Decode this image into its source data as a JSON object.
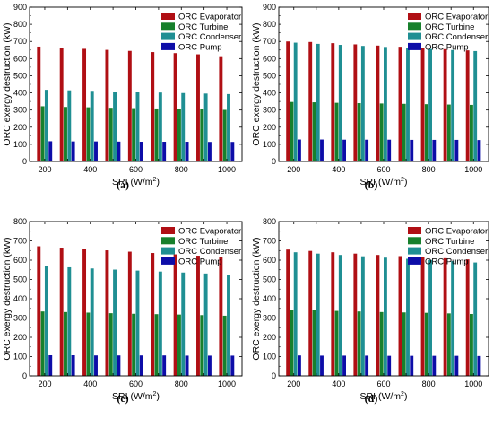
{
  "chart_data": [
    {
      "type": "bar",
      "panel_label": "(a)",
      "categories": [
        "200",
        "300",
        "400",
        "500",
        "600",
        "700",
        "800",
        "900",
        "1000"
      ],
      "xlabel_main": "SRI (W/m",
      "xlabel_sup": "2",
      "xlabel_tail": ")",
      "ylabel": "ORC exergy destruction (kW)",
      "ylim": [
        0,
        900
      ],
      "yticks": [
        0,
        100,
        200,
        300,
        400,
        500,
        600,
        700,
        800,
        900
      ],
      "xticks_shown": [
        "200",
        "400",
        "600",
        "800",
        "1000"
      ],
      "legend_position": "top-right",
      "series": [
        {
          "name": "ORC Evaporator",
          "color": "#b00f14",
          "values": [
            670,
            663,
            657,
            651,
            645,
            638,
            632,
            625,
            614
          ]
        },
        {
          "name": "ORC Turbine",
          "color": "#17802c",
          "values": [
            322,
            318,
            316,
            313,
            311,
            309,
            307,
            304,
            301
          ]
        },
        {
          "name": "ORC Condenser",
          "color": "#1f8f93",
          "values": [
            418,
            415,
            412,
            408,
            405,
            402,
            399,
            396,
            393
          ]
        },
        {
          "name": "ORC Pump",
          "color": "#0d0da8",
          "values": [
            118,
            117,
            117,
            116,
            115,
            115,
            115,
            114,
            114
          ]
        }
      ]
    },
    {
      "type": "bar",
      "panel_label": "(b)",
      "categories": [
        "200",
        "300",
        "400",
        "500",
        "600",
        "700",
        "800",
        "900",
        "1000"
      ],
      "xlabel_main": "SRI (W/m",
      "xlabel_sup": "2",
      "xlabel_tail": ")",
      "ylabel": "ORC exergy destruction (kW)",
      "ylim": [
        0,
        900
      ],
      "yticks": [
        0,
        100,
        200,
        300,
        400,
        500,
        600,
        700,
        800,
        900
      ],
      "xticks_shown": [
        "200",
        "400",
        "600",
        "800",
        "1000"
      ],
      "legend_position": "top-right",
      "series": [
        {
          "name": "ORC Evaporator",
          "color": "#b00f14",
          "values": [
            700,
            697,
            690,
            683,
            676,
            669,
            662,
            655,
            648
          ]
        },
        {
          "name": "ORC Turbine",
          "color": "#17802c",
          "values": [
            347,
            345,
            342,
            340,
            338,
            336,
            334,
            332,
            330
          ]
        },
        {
          "name": "ORC Condenser",
          "color": "#1f8f93",
          "values": [
            693,
            686,
            680,
            674,
            668,
            662,
            656,
            650,
            644
          ]
        },
        {
          "name": "ORC Pump",
          "color": "#0d0da8",
          "values": [
            128,
            128,
            127,
            127,
            127,
            126,
            126,
            126,
            125
          ]
        }
      ]
    },
    {
      "type": "bar",
      "panel_label": "(c)",
      "categories": [
        "200",
        "300",
        "400",
        "500",
        "600",
        "700",
        "800",
        "900",
        "1000"
      ],
      "xlabel_main": "SRI (W/m",
      "xlabel_sup": "2",
      "xlabel_tail": ")",
      "ylabel": "ORC exergy destruction (kW)",
      "ylim": [
        0,
        800
      ],
      "yticks": [
        0,
        100,
        200,
        300,
        400,
        500,
        600,
        700,
        800
      ],
      "xticks_shown": [
        "200",
        "400",
        "600",
        "800",
        "1000"
      ],
      "legend_position": "top-right",
      "series": [
        {
          "name": "ORC Evaporator",
          "color": "#b00f14",
          "values": [
            672,
            665,
            658,
            651,
            644,
            637,
            630,
            623,
            614
          ]
        },
        {
          "name": "ORC Turbine",
          "color": "#17802c",
          "values": [
            334,
            331,
            328,
            325,
            322,
            320,
            318,
            315,
            312
          ]
        },
        {
          "name": "ORC Condenser",
          "color": "#1f8f93",
          "values": [
            569,
            563,
            557,
            551,
            546,
            541,
            536,
            531,
            524
          ]
        },
        {
          "name": "ORC Pump",
          "color": "#0d0da8",
          "values": [
            107,
            107,
            106,
            106,
            106,
            106,
            105,
            105,
            105
          ]
        }
      ]
    },
    {
      "type": "bar",
      "panel_label": "(d)",
      "categories": [
        "200",
        "300",
        "400",
        "500",
        "600",
        "700",
        "800",
        "900",
        "1000"
      ],
      "xlabel_main": "SRI (W/m",
      "xlabel_sup": "2",
      "xlabel_tail": ")",
      "ylabel": "ORC exergy destruction (kW)",
      "ylim": [
        0,
        800
      ],
      "yticks": [
        0,
        100,
        200,
        300,
        400,
        500,
        600,
        700,
        800
      ],
      "xticks_shown": [
        "200",
        "400",
        "600",
        "800",
        "1000"
      ],
      "legend_position": "top-right",
      "series": [
        {
          "name": "ORC Evaporator",
          "color": "#b00f14",
          "values": [
            655,
            648,
            641,
            634,
            627,
            621,
            615,
            610,
            604
          ]
        },
        {
          "name": "ORC Turbine",
          "color": "#17802c",
          "values": [
            343,
            340,
            337,
            334,
            331,
            329,
            327,
            324,
            321
          ]
        },
        {
          "name": "ORC Condenser",
          "color": "#1f8f93",
          "values": [
            641,
            634,
            627,
            620,
            613,
            607,
            601,
            595,
            588
          ]
        },
        {
          "name": "ORC Pump",
          "color": "#0d0da8",
          "values": [
            106,
            105,
            105,
            105,
            104,
            104,
            104,
            104,
            103
          ]
        }
      ]
    }
  ]
}
